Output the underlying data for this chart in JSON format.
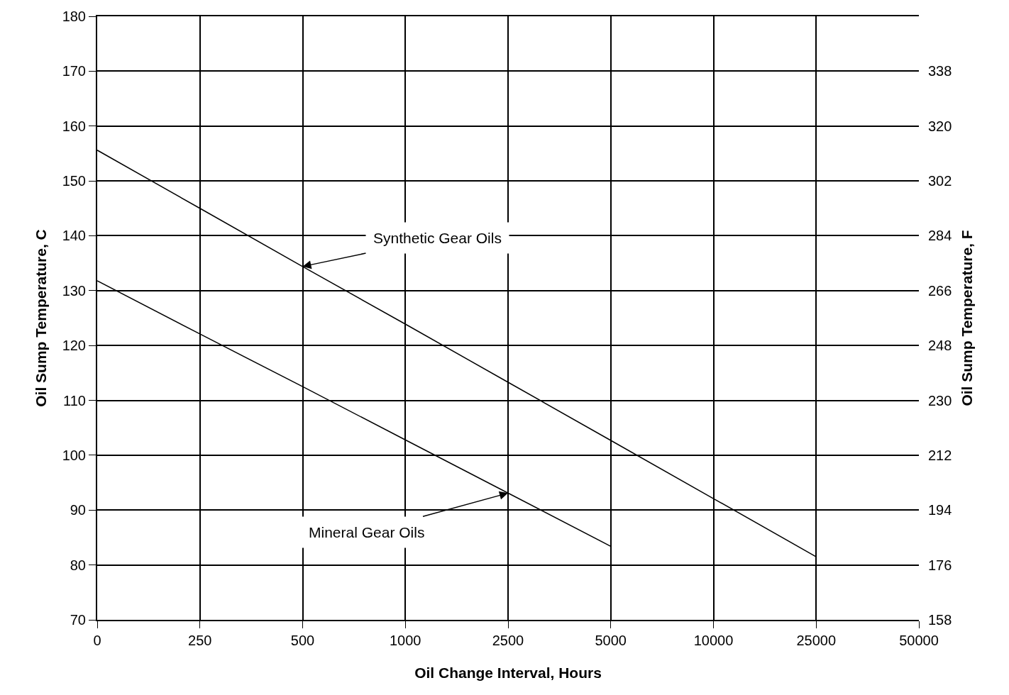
{
  "chart_data": {
    "type": "line",
    "xlabel": "Oil Change Interval, Hours",
    "ylabel": "Oil Sump Temperature, C",
    "y2label": "Oil Sump Temperature, F",
    "categories": [
      "0",
      "250",
      "500",
      "1000",
      "2500",
      "5000",
      "10000",
      "25000",
      "50000"
    ],
    "ylim": [
      70,
      180
    ],
    "yticks": [
      70,
      80,
      90,
      100,
      110,
      120,
      130,
      140,
      150,
      160,
      170,
      180
    ],
    "y2lim": [
      158,
      356
    ],
    "y2ticks": [
      158,
      176,
      194,
      212,
      230,
      248,
      266,
      284,
      302,
      320,
      338
    ],
    "series": [
      {
        "color": "#000000",
        "values": [
          155.6,
          145.0,
          134.4,
          123.9,
          113.3,
          102.7,
          92.1,
          81.5,
          null
        ]
      },
      {
        "color": "#000000",
        "values": [
          131.8,
          122.1,
          112.5,
          102.8,
          93.1,
          83.4,
          null,
          null,
          null
        ]
      }
    ],
    "annotations": [
      {
        "text": "Synthetic Gear Oils",
        "x": "500",
        "y": 134.4
      },
      {
        "text": "Mineral Gear Oils",
        "x": "2500",
        "y": 93.1
      }
    ],
    "grid": true,
    "marker": "none",
    "line_style": "solid"
  }
}
